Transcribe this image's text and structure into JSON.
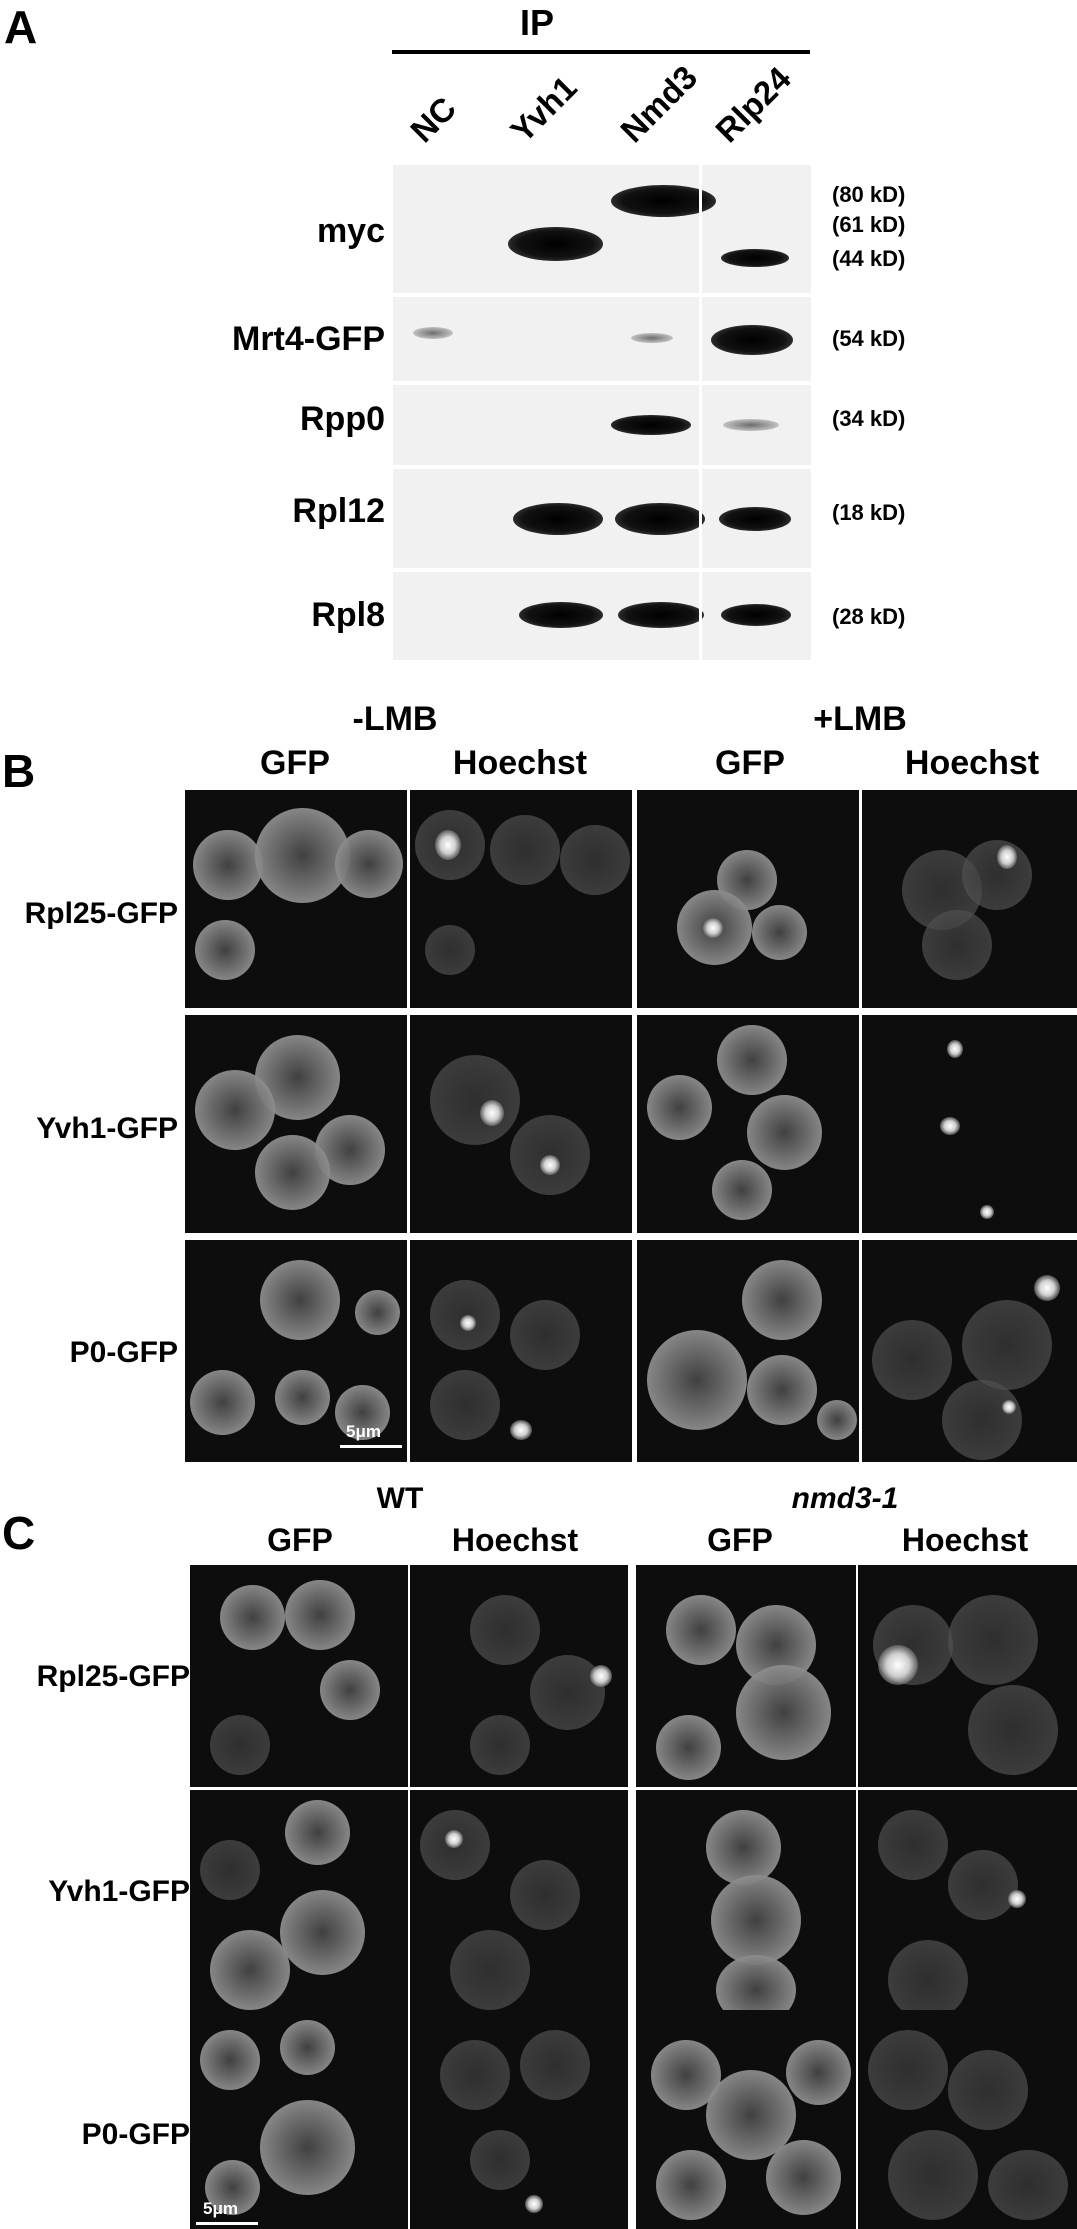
{
  "panelA": {
    "letter": "A",
    "ip_label": "IP",
    "lanes": [
      "NC",
      "Yvh1",
      "Nmd3",
      "Rlp24"
    ],
    "rows": [
      {
        "label": "myc",
        "kd": [
          "(80 kD)",
          "(61 kD)",
          "(44 kD)"
        ]
      },
      {
        "label": "Mrt4-GFP",
        "kd": [
          "(54 kD)"
        ]
      },
      {
        "label": "Rpp0",
        "kd": [
          "(34 kD)"
        ]
      },
      {
        "label": "Rpl12",
        "kd": [
          "(18 kD)"
        ]
      },
      {
        "label": "Rpl8",
        "kd": [
          "(28 kD)"
        ]
      }
    ]
  },
  "panelB": {
    "letter": "B",
    "conditions": [
      "-LMB",
      "+LMB"
    ],
    "columns": [
      "GFP",
      "Hoechst",
      "GFP",
      "Hoechst"
    ],
    "rows": [
      "Rpl25-GFP",
      "Yvh1-GFP",
      "P0-GFP"
    ],
    "scale": "5μm"
  },
  "panelC": {
    "letter": "C",
    "conditions": [
      "WT",
      "nmd3-1"
    ],
    "columns": [
      "GFP",
      "Hoechst",
      "GFP",
      "Hoechst"
    ],
    "rows": [
      "Rpl25-GFP",
      "Yvh1-GFP",
      "P0-GFP"
    ],
    "scale": "5μm"
  }
}
